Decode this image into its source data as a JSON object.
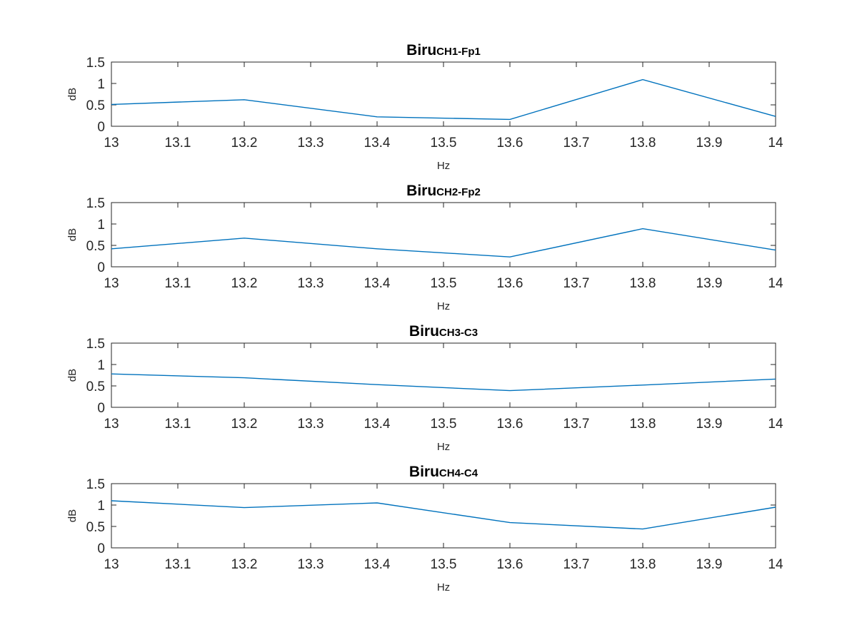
{
  "chart_data": [
    {
      "type": "line",
      "title": "Biru",
      "subtitle": "CH1-Fp1",
      "xlabel": "Hz",
      "ylabel": "dB",
      "xlim": [
        13,
        14
      ],
      "ylim": [
        0,
        1.5
      ],
      "xticks": [
        "13",
        "13.1",
        "13.2",
        "13.3",
        "13.4",
        "13.5",
        "13.6",
        "13.7",
        "13.8",
        "13.9",
        "14"
      ],
      "yticks": [
        "0",
        "0.5",
        "1",
        "1.5"
      ],
      "grid": false,
      "color": "#0072BD",
      "series": [
        {
          "x": [
            13,
            13.2,
            13.4,
            13.6,
            13.8,
            14
          ],
          "values": [
            0.51,
            0.62,
            0.22,
            0.16,
            1.09,
            0.23
          ]
        }
      ]
    },
    {
      "type": "line",
      "title": "Biru",
      "subtitle": "CH2-Fp2",
      "xlabel": "Hz",
      "ylabel": "dB",
      "xlim": [
        13,
        14
      ],
      "ylim": [
        0,
        1.5
      ],
      "xticks": [
        "13",
        "13.1",
        "13.2",
        "13.3",
        "13.4",
        "13.5",
        "13.6",
        "13.7",
        "13.8",
        "13.9",
        "14"
      ],
      "yticks": [
        "0",
        "0.5",
        "1",
        "1.5"
      ],
      "grid": false,
      "color": "#0072BD",
      "series": [
        {
          "x": [
            13,
            13.2,
            13.4,
            13.6,
            13.8,
            14
          ],
          "values": [
            0.42,
            0.67,
            0.42,
            0.23,
            0.89,
            0.39
          ]
        }
      ]
    },
    {
      "type": "line",
      "title": "Biru",
      "subtitle": "CH3-C3",
      "xlabel": "Hz",
      "ylabel": "dB",
      "xlim": [
        13,
        14
      ],
      "ylim": [
        0,
        1.5
      ],
      "xticks": [
        "13",
        "13.1",
        "13.2",
        "13.3",
        "13.4",
        "13.5",
        "13.6",
        "13.7",
        "13.8",
        "13.9",
        "14"
      ],
      "yticks": [
        "0",
        "0.5",
        "1",
        "1.5"
      ],
      "grid": false,
      "color": "#0072BD",
      "series": [
        {
          "x": [
            13,
            13.2,
            13.4,
            13.6,
            13.8,
            14
          ],
          "values": [
            0.78,
            0.69,
            0.53,
            0.39,
            0.52,
            0.66
          ]
        }
      ]
    },
    {
      "type": "line",
      "title": "Biru",
      "subtitle": "CH4-C4",
      "xlabel": "Hz",
      "ylabel": "dB",
      "xlim": [
        13,
        14
      ],
      "ylim": [
        0,
        1.5
      ],
      "xticks": [
        "13",
        "13.1",
        "13.2",
        "13.3",
        "13.4",
        "13.5",
        "13.6",
        "13.7",
        "13.8",
        "13.9",
        "14"
      ],
      "yticks": [
        "0",
        "0.5",
        "1",
        "1.5"
      ],
      "grid": false,
      "color": "#0072BD",
      "series": [
        {
          "x": [
            13,
            13.2,
            13.4,
            13.6,
            13.8,
            14
          ],
          "values": [
            1.1,
            0.94,
            1.05,
            0.59,
            0.44,
            0.95
          ]
        }
      ]
    }
  ]
}
